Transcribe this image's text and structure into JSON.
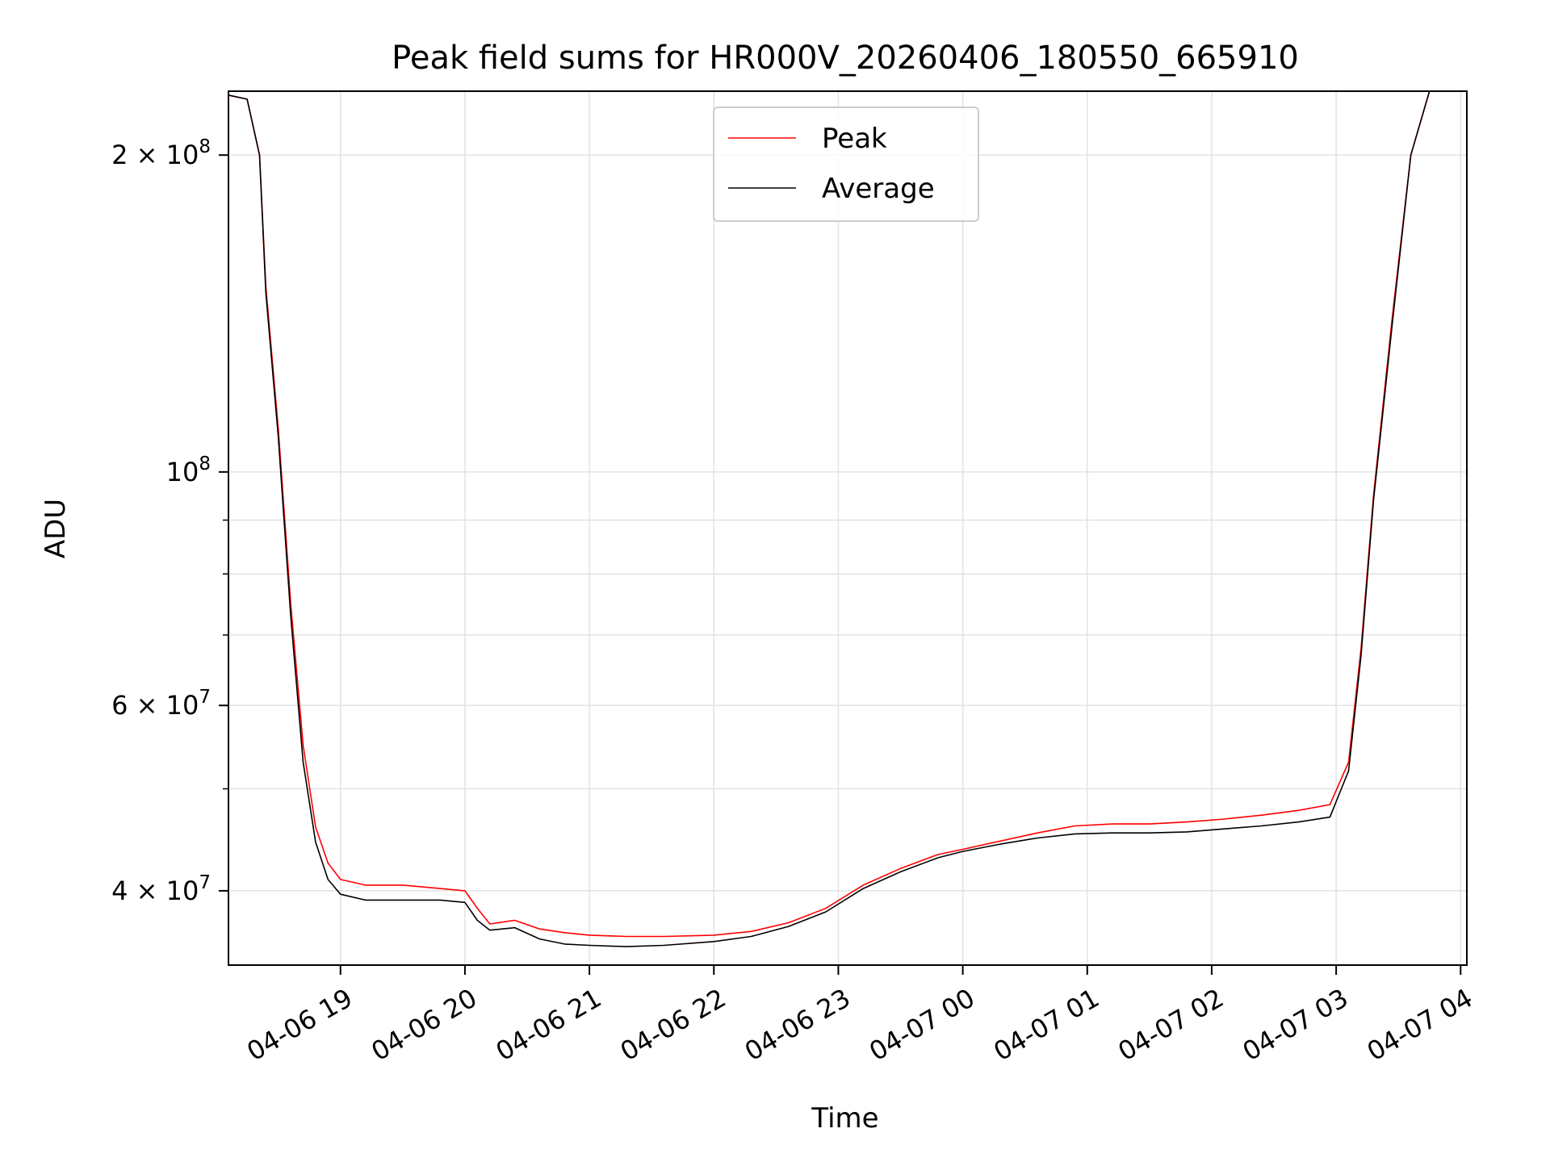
{
  "chart_data": {
    "type": "line",
    "title": "Peak field sums for HR000V_20260406_180550_665910",
    "xlabel": "Time",
    "ylabel": "ADU",
    "yscale": "log",
    "ylim": [
      34000000,
      230000000
    ],
    "xlim_hours": [
      18.1,
      28.05
    ],
    "grid": true,
    "legend_position": "upper center",
    "x_ticks": [
      {
        "value": 19,
        "label": "04-06 19"
      },
      {
        "value": 20,
        "label": "04-06 20"
      },
      {
        "value": 21,
        "label": "04-06 21"
      },
      {
        "value": 22,
        "label": "04-06 22"
      },
      {
        "value": 23,
        "label": "04-06 23"
      },
      {
        "value": 24,
        "label": "04-07 00"
      },
      {
        "value": 25,
        "label": "04-07 01"
      },
      {
        "value": 26,
        "label": "04-07 02"
      },
      {
        "value": 27,
        "label": "04-07 03"
      },
      {
        "value": 28,
        "label": "04-07 04"
      }
    ],
    "y_major_ticks": [
      {
        "value": 40000000,
        "base": "4 × 10",
        "exp": "7"
      },
      {
        "value": 60000000,
        "base": "6 × 10",
        "exp": "7"
      },
      {
        "value": 100000000,
        "base": "10",
        "exp": "8"
      },
      {
        "value": 200000000,
        "base": "2 × 10",
        "exp": "8"
      }
    ],
    "y_minor_ticks": [
      50000000,
      70000000,
      80000000,
      90000000
    ],
    "series": [
      {
        "name": "Peak",
        "color": "#ff0000",
        "x": [
          18.1,
          18.25,
          18.35,
          18.4,
          18.5,
          18.6,
          18.7,
          18.8,
          18.9,
          19.0,
          19.2,
          19.5,
          19.8,
          20.0,
          20.1,
          20.2,
          20.4,
          20.6,
          20.8,
          21.0,
          21.3,
          21.6,
          22.0,
          22.3,
          22.6,
          22.9,
          23.2,
          23.5,
          23.8,
          24.0,
          24.3,
          24.6,
          24.9,
          25.2,
          25.5,
          25.8,
          26.1,
          26.4,
          26.7,
          26.95,
          27.1,
          27.2,
          27.3,
          27.45,
          27.6,
          27.75,
          28.05
        ],
        "values": [
          228000000,
          226000000,
          200000000,
          150000000,
          110000000,
          75000000,
          55000000,
          46000000,
          42500000,
          41000000,
          40500000,
          40500000,
          40200000,
          40000000,
          38500000,
          37200000,
          37500000,
          36800000,
          36500000,
          36300000,
          36200000,
          36200000,
          36300000,
          36600000,
          37300000,
          38500000,
          40500000,
          42000000,
          43300000,
          43800000,
          44600000,
          45400000,
          46100000,
          46300000,
          46300000,
          46500000,
          46800000,
          47200000,
          47700000,
          48300000,
          53000000,
          68000000,
          95000000,
          140000000,
          200000000,
          230000000,
          230000000
        ]
      },
      {
        "name": "Average",
        "color": "#000000",
        "x": [
          18.1,
          18.25,
          18.35,
          18.4,
          18.5,
          18.6,
          18.7,
          18.8,
          18.9,
          19.0,
          19.2,
          19.5,
          19.8,
          20.0,
          20.1,
          20.2,
          20.4,
          20.6,
          20.8,
          21.0,
          21.3,
          21.6,
          22.0,
          22.3,
          22.6,
          22.9,
          23.2,
          23.5,
          23.8,
          24.0,
          24.3,
          24.6,
          24.9,
          25.2,
          25.5,
          25.8,
          26.1,
          26.4,
          26.7,
          26.95,
          27.1,
          27.2,
          27.3,
          27.45,
          27.6,
          27.75,
          28.05
        ],
        "values": [
          228000000,
          226000000,
          200000000,
          148000000,
          108000000,
          73000000,
          53000000,
          44500000,
          41000000,
          39700000,
          39200000,
          39200000,
          39200000,
          39000000,
          37500000,
          36700000,
          36900000,
          36000000,
          35600000,
          35500000,
          35400000,
          35500000,
          35800000,
          36200000,
          37000000,
          38200000,
          40200000,
          41700000,
          43000000,
          43600000,
          44300000,
          44900000,
          45300000,
          45400000,
          45400000,
          45500000,
          45800000,
          46100000,
          46500000,
          47000000,
          52000000,
          67000000,
          94000000,
          138000000,
          200000000,
          230000000,
          230000000
        ]
      }
    ]
  }
}
